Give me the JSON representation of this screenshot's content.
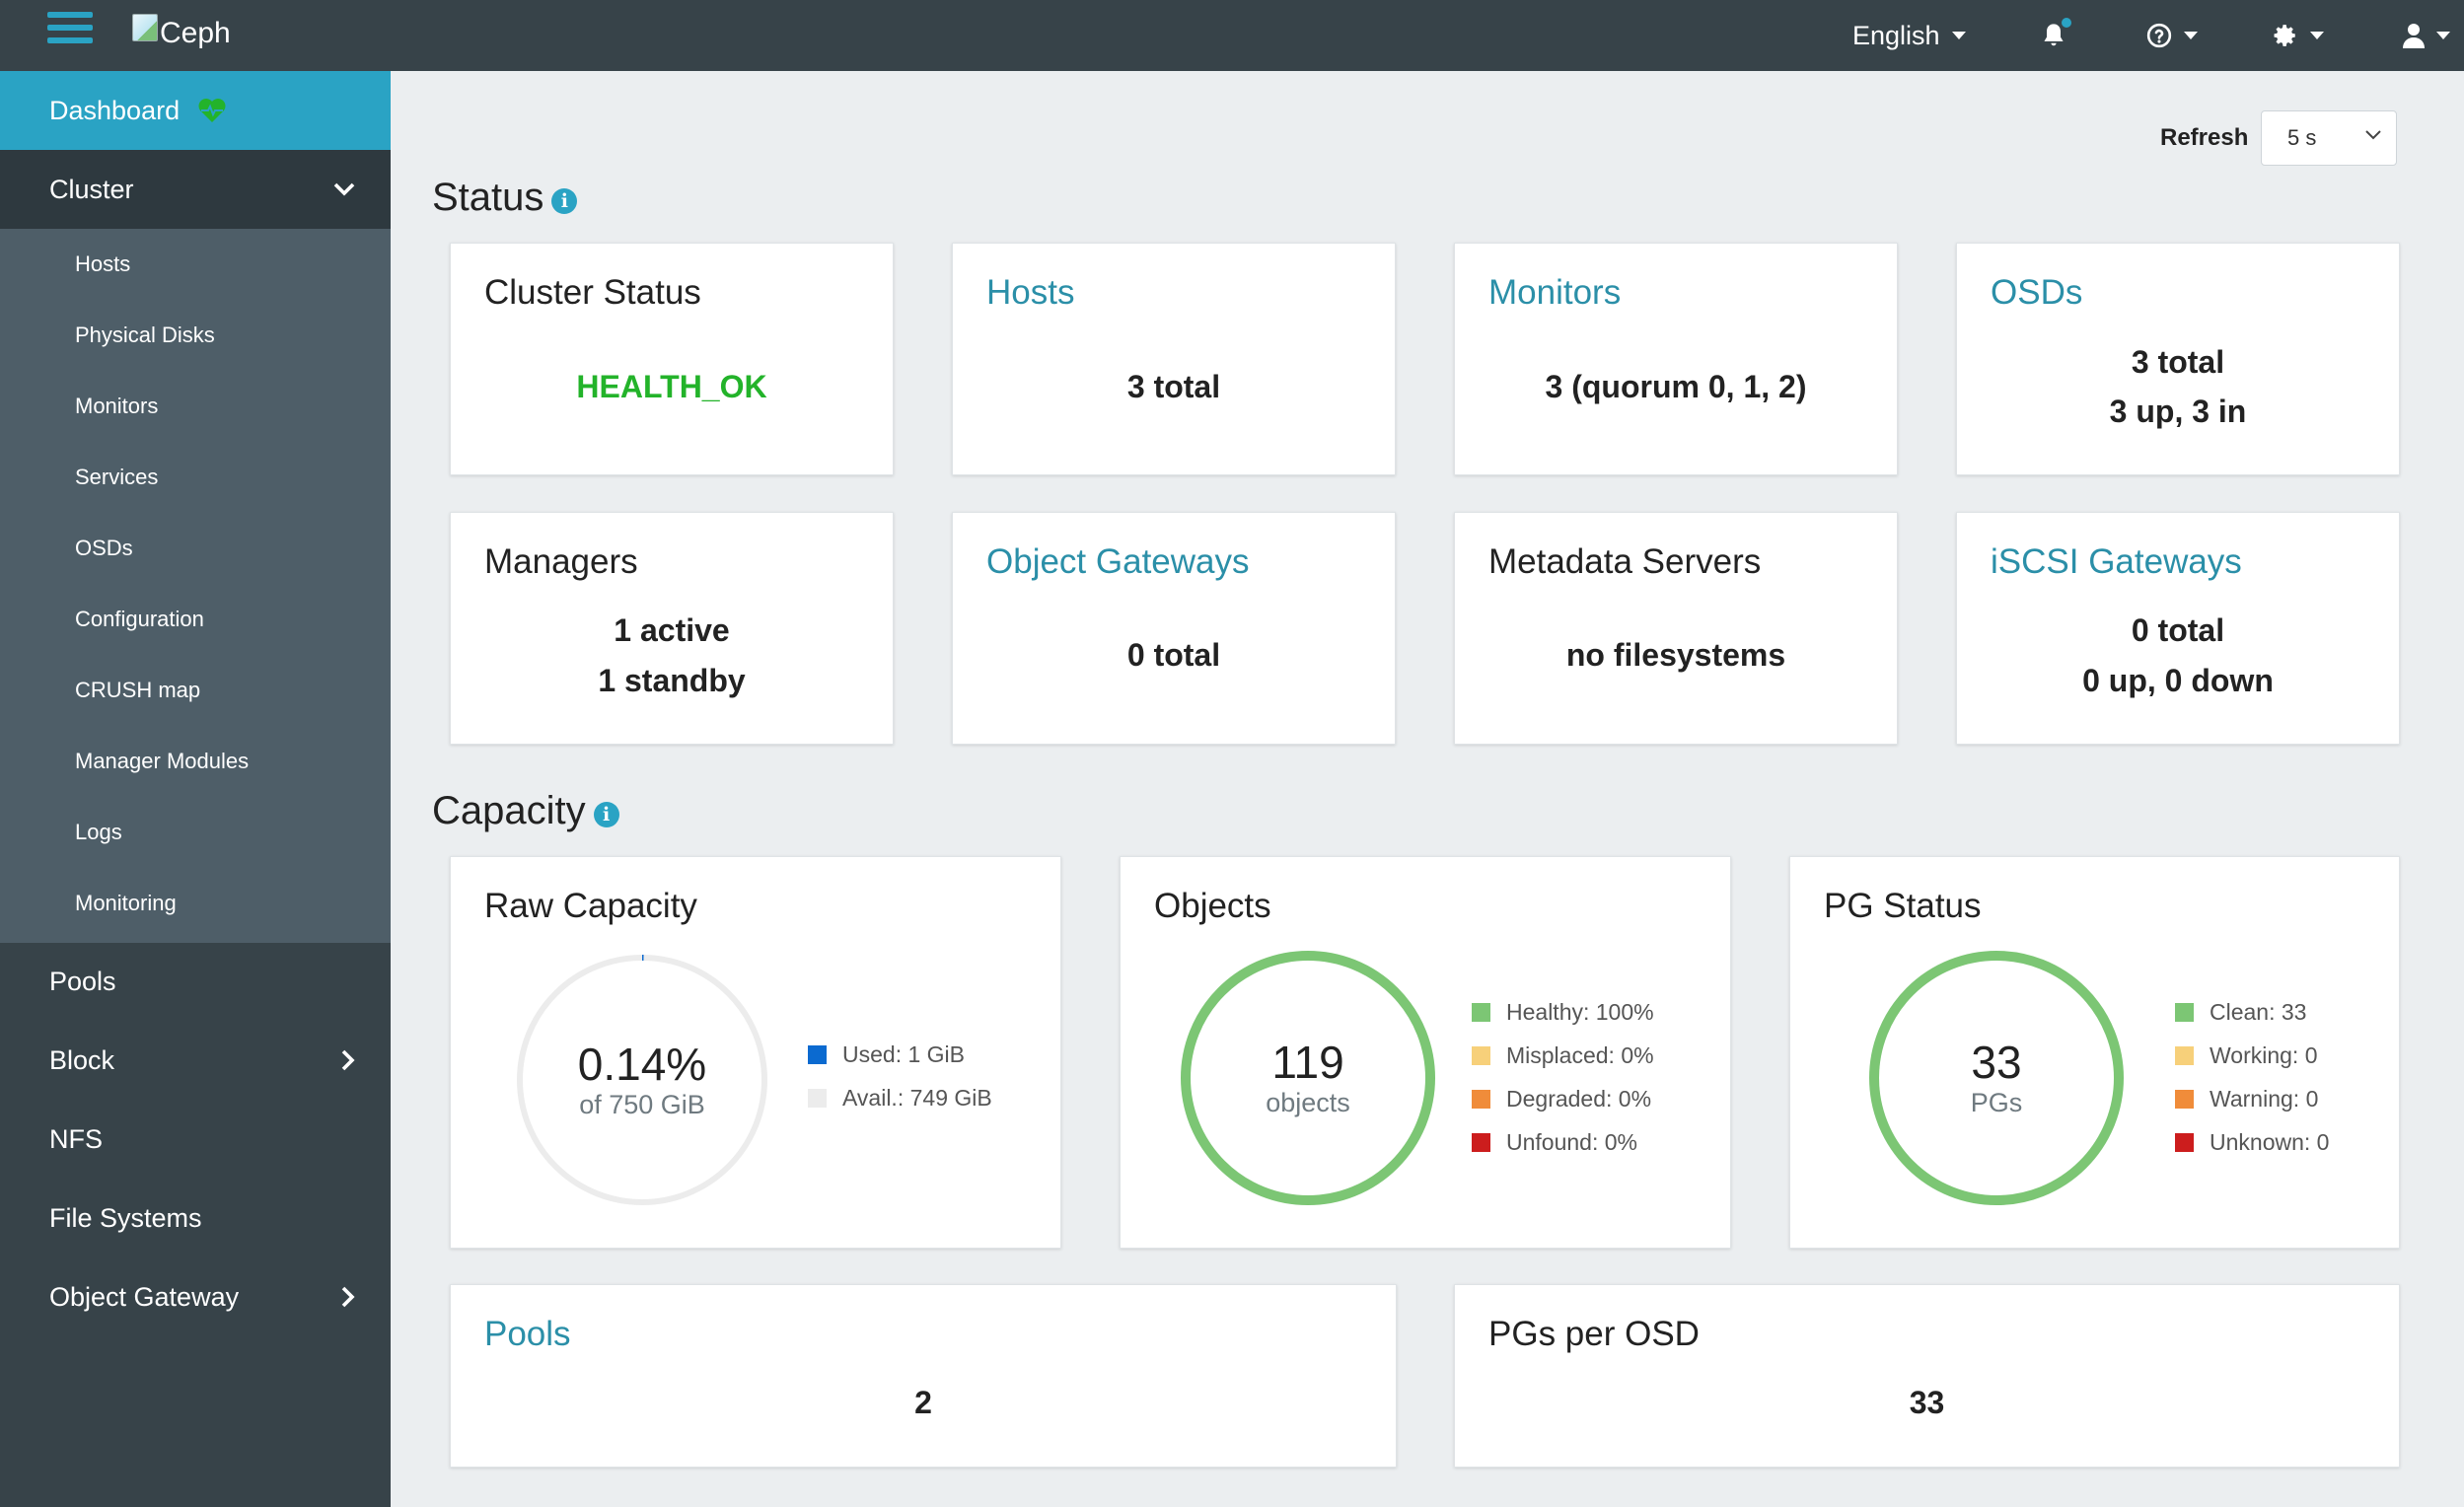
{
  "topbar": {
    "logo_text": "Ceph",
    "language": "English"
  },
  "sidebar": {
    "dashboard": "Dashboard",
    "cluster": "Cluster",
    "cluster_items": [
      "Hosts",
      "Physical Disks",
      "Monitors",
      "Services",
      "OSDs",
      "Configuration",
      "CRUSH map",
      "Manager Modules",
      "Logs",
      "Monitoring"
    ],
    "pools": "Pools",
    "block": "Block",
    "nfs": "NFS",
    "file_systems": "File Systems",
    "object_gateway": "Object Gateway"
  },
  "refresh": {
    "label": "Refresh",
    "value": "5 s"
  },
  "status": {
    "title": "Status",
    "cluster_status": {
      "title": "Cluster Status",
      "value": "HEALTH_OK"
    },
    "hosts": {
      "title": "Hosts",
      "value": "3 total"
    },
    "monitors": {
      "title": "Monitors",
      "value": "3 (quorum 0, 1, 2)"
    },
    "osds": {
      "title": "OSDs",
      "line1": "3 total",
      "line2": "3 up, 3 in"
    },
    "managers": {
      "title": "Managers",
      "line1": "1 active",
      "line2": "1 standby"
    },
    "object_gateways": {
      "title": "Object Gateways",
      "value": "0 total"
    },
    "metadata_servers": {
      "title": "Metadata Servers",
      "value": "no filesystems"
    },
    "iscsi_gateways": {
      "title": "iSCSI Gateways",
      "line1": "0 total",
      "line2": "0 up, 0 down"
    }
  },
  "capacity": {
    "title": "Capacity",
    "raw_capacity": {
      "title": "Raw Capacity",
      "center_big": "0.14%",
      "center_small": "of 750 GiB",
      "used_fraction": 0.0014,
      "legend": [
        {
          "label": "Used: 1 GiB",
          "color": "#0b6ad0"
        },
        {
          "label": "Avail.: 749 GiB",
          "color": "#ececec"
        }
      ]
    },
    "objects": {
      "title": "Objects",
      "center_big": "119",
      "center_small": "objects",
      "legend": [
        {
          "label": "Healthy: 100%",
          "color": "#7cc674"
        },
        {
          "label": "Misplaced: 0%",
          "color": "#f7d07a"
        },
        {
          "label": "Degraded: 0%",
          "color": "#f08c3a"
        },
        {
          "label": "Unfound: 0%",
          "color": "#cc1d1d"
        }
      ]
    },
    "pg_status": {
      "title": "PG Status",
      "center_big": "33",
      "center_small": "PGs",
      "legend": [
        {
          "label": "Clean: 33",
          "color": "#7cc674"
        },
        {
          "label": "Working: 0",
          "color": "#f7d07a"
        },
        {
          "label": "Warning: 0",
          "color": "#f08c3a"
        },
        {
          "label": "Unknown: 0",
          "color": "#cc1d1d"
        }
      ]
    },
    "pools": {
      "title": "Pools",
      "value": "2"
    },
    "pgs_per_osd": {
      "title": "PGs per OSD",
      "value": "33"
    }
  },
  "colors": {
    "accent": "#2aa3c4",
    "nav_bg": "#374349",
    "health_ok": "#23b32a",
    "donut_green": "#7cc674"
  }
}
